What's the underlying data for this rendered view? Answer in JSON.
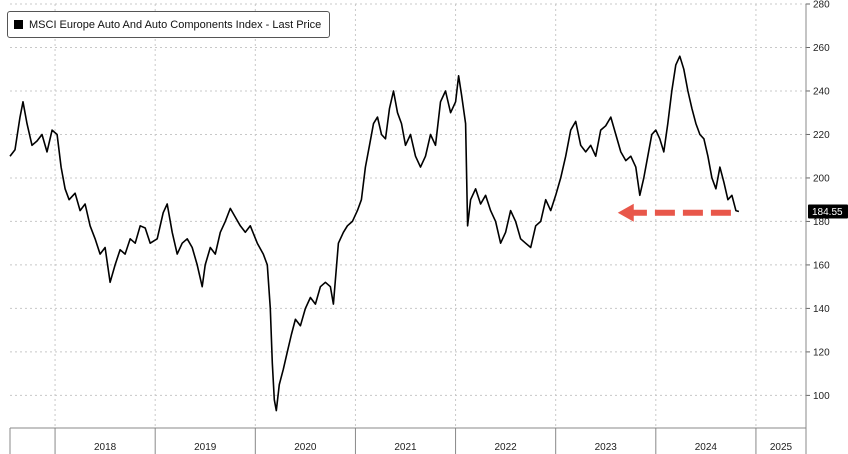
{
  "chart_data": {
    "type": "line",
    "title": "",
    "legend": {
      "label": "MSCI Europe Auto And Auto Components Index - Last Price",
      "placement": "top-left",
      "color": "#000000"
    },
    "xlabel": "",
    "ylabel": "",
    "x_ticks": [
      "2018",
      "2019",
      "2020",
      "2021",
      "2022",
      "2023",
      "2024",
      "2025"
    ],
    "xlim": [
      2017.55,
      2025.5
    ],
    "ylim": [
      85,
      280
    ],
    "y_ticks": [
      100,
      120,
      140,
      160,
      180,
      200,
      220,
      240,
      260,
      280
    ],
    "y_axis_side": "right",
    "grid": true,
    "last_price": {
      "value": 184.55,
      "label": "184.55",
      "label_bg": "#000000"
    },
    "annotation": {
      "type": "dashed-arrow",
      "color": "#e8574a",
      "direction": "left",
      "y": 184,
      "x_start": 2024.75,
      "x_end": 2023.62
    },
    "series": [
      {
        "name": "MSCI Europe Auto And Auto Components Index - Last Price",
        "color": "#000000",
        "points": [
          [
            2017.55,
            210
          ],
          [
            2017.6,
            213
          ],
          [
            2017.65,
            228
          ],
          [
            2017.68,
            235
          ],
          [
            2017.72,
            225
          ],
          [
            2017.77,
            215
          ],
          [
            2017.82,
            217
          ],
          [
            2017.87,
            220
          ],
          [
            2017.92,
            212
          ],
          [
            2017.97,
            222
          ],
          [
            2018.02,
            220
          ],
          [
            2018.06,
            205
          ],
          [
            2018.1,
            195
          ],
          [
            2018.14,
            190
          ],
          [
            2018.2,
            193
          ],
          [
            2018.25,
            185
          ],
          [
            2018.3,
            188
          ],
          [
            2018.35,
            178
          ],
          [
            2018.4,
            172
          ],
          [
            2018.45,
            165
          ],
          [
            2018.5,
            168
          ],
          [
            2018.55,
            152
          ],
          [
            2018.6,
            160
          ],
          [
            2018.65,
            167
          ],
          [
            2018.7,
            165
          ],
          [
            2018.75,
            172
          ],
          [
            2018.8,
            170
          ],
          [
            2018.85,
            178
          ],
          [
            2018.9,
            177
          ],
          [
            2018.95,
            170
          ],
          [
            2019.02,
            172
          ],
          [
            2019.08,
            184
          ],
          [
            2019.12,
            188
          ],
          [
            2019.17,
            175
          ],
          [
            2019.22,
            165
          ],
          [
            2019.27,
            170
          ],
          [
            2019.32,
            172
          ],
          [
            2019.37,
            168
          ],
          [
            2019.42,
            160
          ],
          [
            2019.47,
            150
          ],
          [
            2019.5,
            160
          ],
          [
            2019.55,
            168
          ],
          [
            2019.6,
            165
          ],
          [
            2019.65,
            175
          ],
          [
            2019.7,
            180
          ],
          [
            2019.75,
            186
          ],
          [
            2019.8,
            182
          ],
          [
            2019.85,
            178
          ],
          [
            2019.9,
            175
          ],
          [
            2019.95,
            178
          ],
          [
            2020.02,
            170
          ],
          [
            2020.08,
            165
          ],
          [
            2020.12,
            160
          ],
          [
            2020.15,
            140
          ],
          [
            2020.17,
            115
          ],
          [
            2020.19,
            98
          ],
          [
            2020.21,
            93
          ],
          [
            2020.24,
            105
          ],
          [
            2020.28,
            112
          ],
          [
            2020.32,
            120
          ],
          [
            2020.36,
            128
          ],
          [
            2020.4,
            135
          ],
          [
            2020.45,
            132
          ],
          [
            2020.5,
            140
          ],
          [
            2020.55,
            145
          ],
          [
            2020.6,
            142
          ],
          [
            2020.65,
            150
          ],
          [
            2020.7,
            152
          ],
          [
            2020.75,
            150
          ],
          [
            2020.78,
            142
          ],
          [
            2020.83,
            170
          ],
          [
            2020.88,
            175
          ],
          [
            2020.92,
            178
          ],
          [
            2020.97,
            180
          ],
          [
            2021.02,
            185
          ],
          [
            2021.06,
            190
          ],
          [
            2021.1,
            205
          ],
          [
            2021.14,
            215
          ],
          [
            2021.18,
            225
          ],
          [
            2021.22,
            228
          ],
          [
            2021.26,
            220
          ],
          [
            2021.3,
            218
          ],
          [
            2021.34,
            232
          ],
          [
            2021.38,
            240
          ],
          [
            2021.42,
            230
          ],
          [
            2021.46,
            225
          ],
          [
            2021.5,
            215
          ],
          [
            2021.55,
            220
          ],
          [
            2021.6,
            210
          ],
          [
            2021.65,
            205
          ],
          [
            2021.7,
            210
          ],
          [
            2021.75,
            220
          ],
          [
            2021.8,
            215
          ],
          [
            2021.85,
            235
          ],
          [
            2021.9,
            240
          ],
          [
            2021.95,
            230
          ],
          [
            2022.0,
            235
          ],
          [
            2022.03,
            247
          ],
          [
            2022.06,
            238
          ],
          [
            2022.1,
            225
          ],
          [
            2022.12,
            178
          ],
          [
            2022.15,
            190
          ],
          [
            2022.2,
            195
          ],
          [
            2022.25,
            188
          ],
          [
            2022.3,
            192
          ],
          [
            2022.35,
            185
          ],
          [
            2022.4,
            180
          ],
          [
            2022.45,
            170
          ],
          [
            2022.5,
            175
          ],
          [
            2022.55,
            185
          ],
          [
            2022.6,
            180
          ],
          [
            2022.65,
            172
          ],
          [
            2022.7,
            170
          ],
          [
            2022.75,
            168
          ],
          [
            2022.8,
            178
          ],
          [
            2022.85,
            180
          ],
          [
            2022.9,
            190
          ],
          [
            2022.95,
            185
          ],
          [
            2023.0,
            192
          ],
          [
            2023.05,
            200
          ],
          [
            2023.1,
            210
          ],
          [
            2023.15,
            222
          ],
          [
            2023.2,
            226
          ],
          [
            2023.25,
            215
          ],
          [
            2023.3,
            212
          ],
          [
            2023.35,
            215
          ],
          [
            2023.4,
            210
          ],
          [
            2023.45,
            222
          ],
          [
            2023.5,
            224
          ],
          [
            2023.55,
            228
          ],
          [
            2023.6,
            220
          ],
          [
            2023.65,
            212
          ],
          [
            2023.7,
            208
          ],
          [
            2023.75,
            210
          ],
          [
            2023.8,
            205
          ],
          [
            2023.84,
            192
          ],
          [
            2023.88,
            200
          ],
          [
            2023.92,
            210
          ],
          [
            2023.96,
            220
          ],
          [
            2024.0,
            222
          ],
          [
            2024.04,
            218
          ],
          [
            2024.08,
            212
          ],
          [
            2024.12,
            225
          ],
          [
            2024.16,
            240
          ],
          [
            2024.2,
            252
          ],
          [
            2024.24,
            256
          ],
          [
            2024.28,
            250
          ],
          [
            2024.32,
            240
          ],
          [
            2024.36,
            232
          ],
          [
            2024.4,
            225
          ],
          [
            2024.44,
            220
          ],
          [
            2024.48,
            218
          ],
          [
            2024.52,
            210
          ],
          [
            2024.56,
            200
          ],
          [
            2024.6,
            195
          ],
          [
            2024.64,
            205
          ],
          [
            2024.68,
            198
          ],
          [
            2024.72,
            190
          ],
          [
            2024.76,
            192
          ],
          [
            2024.8,
            185
          ],
          [
            2024.83,
            184.55
          ]
        ]
      }
    ]
  }
}
